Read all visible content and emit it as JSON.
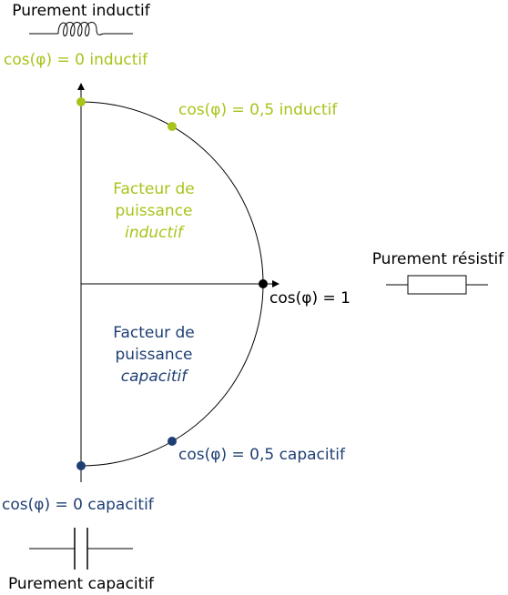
{
  "title_top": "Purement inductif",
  "title_right": "Purement résistif",
  "title_bottom": "Purement capacitif",
  "points": [
    {
      "label": "cos(φ) = 0 inductif"
    },
    {
      "label": "cos(φ) = 0,5 inductif"
    },
    {
      "label": "cos(φ) = 1"
    },
    {
      "label": "cos(φ) = 0,5 capacitif"
    },
    {
      "label": "cos(φ) = 0 capacitif"
    }
  ],
  "regions": [
    {
      "lines": [
        "Facteur de",
        "puissance"
      ],
      "emphasis": "inductif"
    },
    {
      "lines": [
        "Facteur de",
        "puissance"
      ],
      "emphasis": "capacitif"
    }
  ]
}
